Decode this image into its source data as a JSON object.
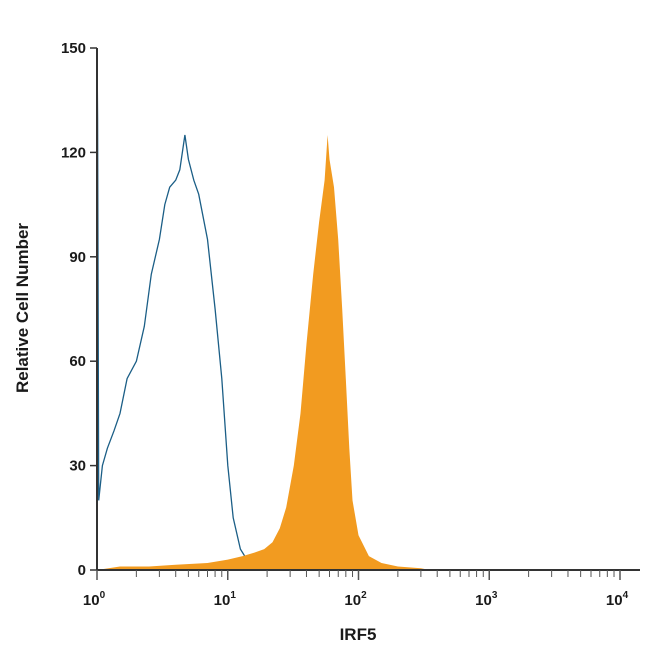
{
  "chart_data": {
    "type": "area",
    "xlabel": "IRF5",
    "ylabel": "Relative Cell Number",
    "x_scale": "log",
    "xlim": [
      1,
      10000
    ],
    "ylim": [
      0,
      150
    ],
    "x_tick_labels": [
      {
        "base": "10",
        "exp": "0"
      },
      {
        "base": "10",
        "exp": "1"
      },
      {
        "base": "10",
        "exp": "2"
      },
      {
        "base": "10",
        "exp": "3"
      },
      {
        "base": "10",
        "exp": "4"
      }
    ],
    "y_ticks": [
      0,
      30,
      60,
      90,
      120,
      150
    ],
    "y_tick_labels": [
      "0",
      "30",
      "60",
      "90",
      "120",
      "150"
    ],
    "grid": false,
    "legend": "none",
    "series": [
      {
        "style": "line",
        "color": "#1b5e86",
        "points": [
          [
            1.0,
            150
          ],
          [
            1.01,
            130
          ],
          [
            1.03,
            20
          ],
          [
            1.1,
            30
          ],
          [
            1.2,
            35
          ],
          [
            1.35,
            40
          ],
          [
            1.5,
            45
          ],
          [
            1.7,
            55
          ],
          [
            2.0,
            60
          ],
          [
            2.3,
            70
          ],
          [
            2.6,
            85
          ],
          [
            3.0,
            95
          ],
          [
            3.3,
            105
          ],
          [
            3.6,
            110
          ],
          [
            4.0,
            112
          ],
          [
            4.3,
            115
          ],
          [
            4.7,
            125
          ],
          [
            5.0,
            118
          ],
          [
            5.5,
            112
          ],
          [
            6.0,
            108
          ],
          [
            7.0,
            95
          ],
          [
            8.0,
            75
          ],
          [
            9.0,
            55
          ],
          [
            10.0,
            30
          ],
          [
            11.0,
            15
          ],
          [
            12.5,
            6
          ],
          [
            14.0,
            3
          ],
          [
            16.0,
            1
          ],
          [
            20.0,
            0.5
          ],
          [
            30.0,
            0.2
          ],
          [
            40.0,
            0
          ]
        ]
      },
      {
        "style": "filled",
        "color": "#f29b20",
        "points": [
          [
            1.0,
            0
          ],
          [
            1.5,
            1
          ],
          [
            2.5,
            1
          ],
          [
            4.0,
            1.5
          ],
          [
            7.0,
            2
          ],
          [
            10.0,
            3
          ],
          [
            13.0,
            4
          ],
          [
            16.0,
            5
          ],
          [
            19.0,
            6
          ],
          [
            22.0,
            8
          ],
          [
            25.0,
            12
          ],
          [
            28.0,
            18
          ],
          [
            32.0,
            30
          ],
          [
            36.0,
            45
          ],
          [
            40.0,
            65
          ],
          [
            45.0,
            85
          ],
          [
            50.0,
            100
          ],
          [
            55.0,
            112
          ],
          [
            58.0,
            125
          ],
          [
            60.0,
            118
          ],
          [
            65.0,
            110
          ],
          [
            70.0,
            95
          ],
          [
            75.0,
            75
          ],
          [
            80.0,
            55
          ],
          [
            85.0,
            35
          ],
          [
            90.0,
            20
          ],
          [
            100.0,
            10
          ],
          [
            120.0,
            4
          ],
          [
            150.0,
            2
          ],
          [
            200.0,
            1
          ],
          [
            300.0,
            0.5
          ],
          [
            350.0,
            0
          ]
        ]
      }
    ]
  }
}
